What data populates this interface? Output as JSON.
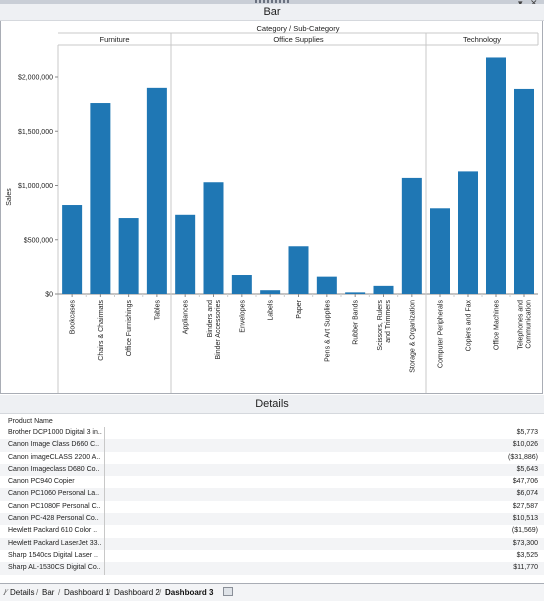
{
  "window": {
    "title": "Bar",
    "menu_glyph": "▾",
    "close_glyph": "✕"
  },
  "chart_data": {
    "type": "bar",
    "title": "Category  /  Sub-Category",
    "ylabel": "Sales",
    "ylim": [
      0,
      2250000
    ],
    "y_ticks": [
      {
        "value": 0,
        "label": "$0"
      },
      {
        "value": 500000,
        "label": "$500,000"
      },
      {
        "value": 1000000,
        "label": "$1,000,000"
      },
      {
        "value": 1500000,
        "label": "$1,500,000"
      },
      {
        "value": 2000000,
        "label": "$2,000,000"
      }
    ],
    "groups": [
      {
        "name": "Furniture",
        "categories": [
          {
            "label": "Bookcases",
            "value": 820000
          },
          {
            "label": "Chairs & Chairmats",
            "value": 1760000
          },
          {
            "label": "Office Furnishings",
            "value": 700000
          },
          {
            "label": "Tables",
            "value": 1900000
          }
        ]
      },
      {
        "name": "Office Supplies",
        "categories": [
          {
            "label": "Appliances",
            "value": 730000
          },
          {
            "label": "Binders and Binder Accessories",
            "value": 1030000
          },
          {
            "label": "Envelopes",
            "value": 175000
          },
          {
            "label": "Labels",
            "value": 35000
          },
          {
            "label": "Paper",
            "value": 440000
          },
          {
            "label": "Pens & Art Supplies",
            "value": 160000
          },
          {
            "label": "Rubber Bands",
            "value": 15000
          },
          {
            "label": "Scissors, Rulers and Trimmers",
            "value": 75000
          },
          {
            "label": "Storage & Organization",
            "value": 1070000
          }
        ]
      },
      {
        "name": "Technology",
        "categories": [
          {
            "label": "Computer Peripherals",
            "value": 790000
          },
          {
            "label": "Copiers and Fax",
            "value": 1130000
          },
          {
            "label": "Office Machines",
            "value": 2180000
          },
          {
            "label": "Telephones and Communication",
            "value": 1890000
          }
        ]
      }
    ],
    "bar_color": "#1f77b4",
    "grid": false
  },
  "details": {
    "title": "Details",
    "column_header": "Product Name",
    "rows": [
      {
        "name": "Brother DCP1000 Digital 3 in..",
        "value": "$5,773"
      },
      {
        "name": "Canon Image Class D660 C..",
        "value": "$10,026"
      },
      {
        "name": "Canon imageCLASS 2200 A..",
        "value": "($31,886)"
      },
      {
        "name": "Canon Imageclass D680 Co..",
        "value": "$5,643"
      },
      {
        "name": "Canon PC940 Copier",
        "value": "$47,706"
      },
      {
        "name": "Canon PC1060 Personal La..",
        "value": "$6,074"
      },
      {
        "name": "Canon PC1080F Personal C..",
        "value": "$27,587"
      },
      {
        "name": "Canon PC-428 Personal Co..",
        "value": "$10,513"
      },
      {
        "name": "Hewlett Packard 610 Color ..",
        "value": "($1,569)"
      },
      {
        "name": "Hewlett Packard LaserJet 33..",
        "value": "$73,300"
      },
      {
        "name": "Sharp 1540cs Digital Laser ..",
        "value": "$3,525"
      },
      {
        "name": "Sharp AL-1530CS Digital Co..",
        "value": "$11,770"
      }
    ]
  },
  "tabs": [
    {
      "label": "Details",
      "active": false
    },
    {
      "label": "Bar",
      "active": false
    },
    {
      "label": "Dashboard 1",
      "active": false
    },
    {
      "label": "Dashboard 2",
      "active": false
    },
    {
      "label": "Dashboard 3",
      "active": true
    }
  ]
}
